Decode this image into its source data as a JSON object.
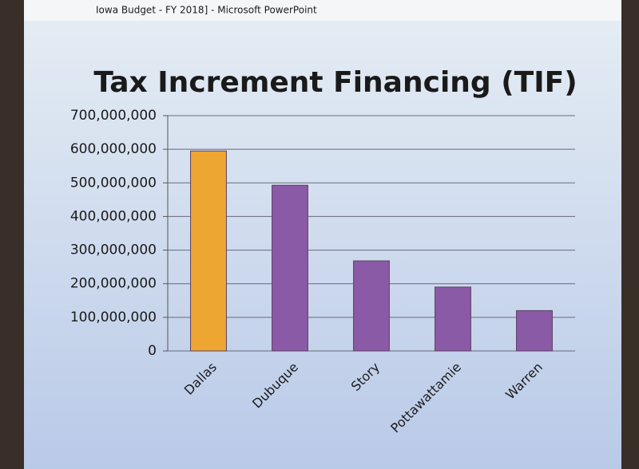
{
  "window_title": "Iowa Budget - FY 2018] - Microsoft PowerPoint",
  "chart_data": {
    "type": "bar",
    "title": "Tax Increment Financing (TIF)",
    "categories": [
      "Dallas",
      "Dubuque",
      "Story",
      "Pottawattamie",
      "Warren"
    ],
    "values": [
      595000000,
      493000000,
      268000000,
      190000000,
      120000000
    ],
    "colors": [
      "#eea632",
      "#8b5aa6",
      "#8b5aa6",
      "#8b5aa6",
      "#8b5aa6"
    ],
    "ylim": [
      0,
      700000000
    ],
    "yticks": [
      0,
      {
        "value": 100000000,
        "label": "100,000,000"
      },
      {
        "value": 200000000,
        "label": "200,000,000"
      },
      {
        "value": 300000000,
        "label": "300,000,000"
      },
      {
        "value": 400000000,
        "label": "400,000,000"
      },
      {
        "value": 500000000,
        "label": "500,000,000"
      },
      {
        "value": 600000000,
        "label": "600,000,000"
      },
      {
        "value": 700000000,
        "label": "700,000,000"
      }
    ],
    "grid": true
  }
}
